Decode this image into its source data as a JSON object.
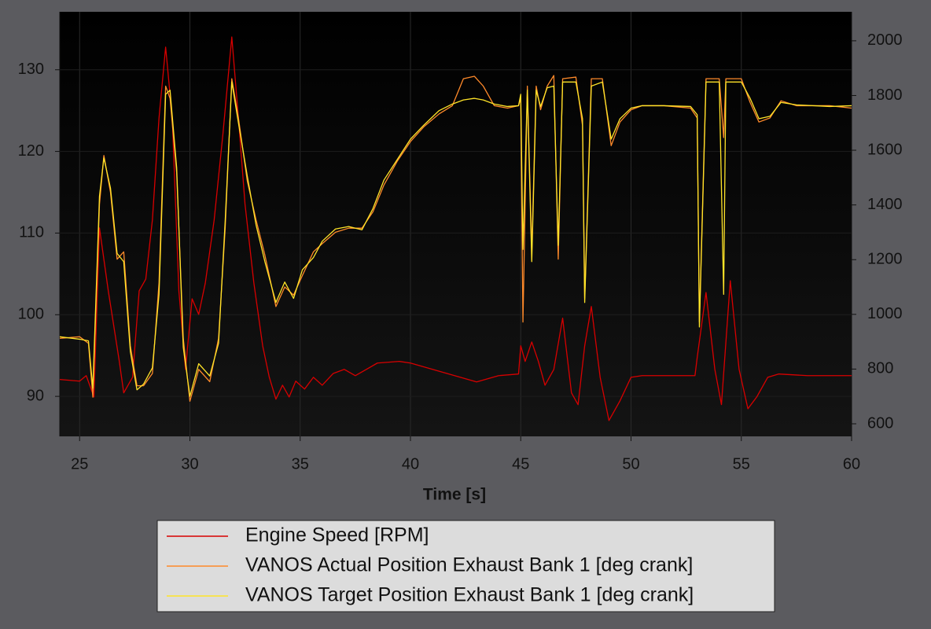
{
  "chart_data": {
    "type": "line",
    "xlabel": "Time [s]",
    "xlim": [
      24.1,
      60
    ],
    "xticks": [
      25,
      30,
      35,
      40,
      45,
      50,
      55,
      60
    ],
    "ylim": [
      85.1,
      137.1
    ],
    "yticks": [
      90,
      100,
      110,
      120,
      130
    ],
    "y2lim": [
      554,
      2106
    ],
    "y2ticks": [
      600,
      800,
      1000,
      1200,
      1400,
      1600,
      1800,
      2000
    ],
    "grid": true,
    "legend": "bottom",
    "series": [
      {
        "name": "Engine Speed [RPM]",
        "color": "#d80000",
        "axis": "y2",
        "x": [
          24.1,
          25.0,
          25.3,
          25.65,
          25.9,
          26.3,
          26.8,
          27.0,
          27.4,
          27.7,
          28.0,
          28.3,
          28.6,
          28.9,
          29.2,
          29.5,
          29.8,
          30.1,
          30.4,
          30.7,
          31.1,
          31.5,
          31.9,
          32.2,
          32.5,
          32.9,
          33.3,
          33.6,
          33.9,
          34.2,
          34.5,
          34.8,
          35.2,
          35.6,
          36.0,
          36.5,
          37.0,
          37.5,
          38.0,
          38.5,
          39.5,
          40.0,
          41.0,
          42.0,
          43.0,
          44.0,
          44.9,
          45.0,
          45.2,
          45.5,
          45.8,
          46.1,
          46.5,
          46.9,
          47.3,
          47.6,
          47.9,
          48.2,
          48.6,
          49.0,
          49.5,
          50.0,
          50.5,
          51.0,
          52.0,
          52.9,
          53.0,
          53.4,
          53.8,
          54.1,
          54.5,
          54.9,
          55.3,
          55.7,
          56.2,
          56.7,
          58.0,
          60.0
        ],
        "values": [
          762,
          756,
          776,
          698,
          1316,
          1086,
          828,
          713,
          770,
          1086,
          1129,
          1345,
          1718,
          1977,
          1718,
          1086,
          799,
          1057,
          1000,
          1115,
          1345,
          1661,
          2014,
          1718,
          1402,
          1115,
          885,
          770,
          690,
          741,
          698,
          756,
          727,
          770,
          741,
          784,
          799,
          776,
          799,
          822,
          828,
          822,
          799,
          776,
          753,
          776,
          782,
          885,
          828,
          899,
          828,
          741,
          799,
          986,
          713,
          670,
          885,
          1029,
          770,
          612,
          684,
          770,
          776,
          776,
          776,
          776,
          842,
          1080,
          799,
          670,
          1123,
          799,
          655,
          698,
          770,
          782,
          776,
          776
        ]
      },
      {
        "name": "VANOS Actual Position Exhaust Bank 1 [deg crank]",
        "color": "#ff8a2a",
        "x": [
          24.1,
          25.0,
          25.4,
          25.6,
          25.9,
          26.1,
          26.4,
          26.7,
          27.0,
          27.3,
          27.6,
          27.9,
          28.3,
          28.6,
          28.9,
          29.1,
          29.4,
          29.7,
          30.0,
          30.4,
          30.9,
          31.3,
          31.6,
          31.9,
          32.2,
          32.6,
          33.0,
          33.4,
          33.9,
          34.3,
          34.7,
          35.1,
          35.6,
          36.0,
          36.6,
          37.2,
          37.8,
          38.3,
          38.8,
          39.4,
          40.0,
          40.6,
          41.3,
          41.9,
          42.4,
          42.9,
          43.3,
          43.8,
          44.4,
          44.9,
          45.0,
          45.1,
          45.3,
          45.5,
          45.7,
          45.9,
          46.2,
          46.5,
          46.7,
          46.9,
          47.5,
          47.8,
          47.9,
          48.2,
          48.7,
          49.1,
          49.5,
          50.0,
          50.5,
          51.5,
          52.7,
          53.0,
          53.1,
          53.4,
          54.0,
          54.2,
          54.3,
          55.0,
          55.4,
          55.8,
          56.3,
          56.8,
          57.5,
          59.0,
          60.0
        ],
        "values": [
          97.1,
          97.3,
          96.5,
          89.9,
          113.5,
          119.5,
          115.0,
          106.8,
          107.7,
          96.2,
          91.3,
          91.3,
          92.8,
          103.9,
          128.0,
          126.5,
          117.4,
          97.1,
          89.4,
          93.3,
          91.8,
          97.1,
          110.6,
          128.9,
          124.1,
          116.4,
          111.6,
          107.3,
          101.0,
          103.4,
          102.4,
          104.8,
          107.7,
          108.7,
          110.1,
          110.6,
          110.6,
          112.6,
          115.9,
          118.8,
          121.2,
          123.0,
          124.6,
          125.6,
          128.9,
          129.2,
          128.0,
          125.6,
          125.3,
          125.6,
          126.5,
          99.1,
          128.0,
          107.7,
          128.0,
          125.1,
          128.0,
          129.3,
          106.8,
          128.9,
          129.1,
          123.2,
          102.0,
          128.9,
          128.9,
          120.7,
          123.6,
          125.1,
          125.6,
          125.6,
          125.3,
          124.1,
          99.1,
          128.9,
          128.9,
          121.7,
          128.9,
          128.9,
          126.0,
          123.6,
          124.1,
          126.2,
          125.6,
          125.6,
          125.3
        ]
      },
      {
        "name": "VANOS Target Position Exhaust Bank 1 [deg crank]",
        "color": "#ffe428",
        "x": [
          24.1,
          25.0,
          25.4,
          25.6,
          25.9,
          26.1,
          26.4,
          26.7,
          27.0,
          27.3,
          27.6,
          27.9,
          28.3,
          28.6,
          28.9,
          29.1,
          29.4,
          29.7,
          30.0,
          30.4,
          30.9,
          31.3,
          31.6,
          31.9,
          32.2,
          32.6,
          33.0,
          33.4,
          33.9,
          34.3,
          34.7,
          35.1,
          35.6,
          36.0,
          36.6,
          37.2,
          37.8,
          38.3,
          38.8,
          39.4,
          40.0,
          40.6,
          41.3,
          41.9,
          42.4,
          42.9,
          43.3,
          43.8,
          44.4,
          44.9,
          45.0,
          45.1,
          45.3,
          45.5,
          45.7,
          45.9,
          46.2,
          46.5,
          46.7,
          46.9,
          47.5,
          47.8,
          47.9,
          48.2,
          48.7,
          49.1,
          49.5,
          50.0,
          50.5,
          51.5,
          52.7,
          53.0,
          53.1,
          53.4,
          54.0,
          54.2,
          54.3,
          55.0,
          55.4,
          55.8,
          56.3,
          56.8,
          57.5,
          59.0,
          60.0
        ],
        "values": [
          97.3,
          97.0,
          96.8,
          91.0,
          114.5,
          119.2,
          115.5,
          107.5,
          106.5,
          95.5,
          90.8,
          91.5,
          93.5,
          102.5,
          127.0,
          127.5,
          118.0,
          96.0,
          90.0,
          94.0,
          92.5,
          96.5,
          111.5,
          128.5,
          123.5,
          117.0,
          111.0,
          106.5,
          101.5,
          104.0,
          102.0,
          105.5,
          107.0,
          109.0,
          110.5,
          110.8,
          110.4,
          113.0,
          116.5,
          119.0,
          121.5,
          123.2,
          125.0,
          125.8,
          126.3,
          126.5,
          126.3,
          125.8,
          125.5,
          125.6,
          127.0,
          108.0,
          127.5,
          106.5,
          127.5,
          125.5,
          127.8,
          128.0,
          108.5,
          128.5,
          128.5,
          124.0,
          101.5,
          128.0,
          128.5,
          121.5,
          124.0,
          125.3,
          125.6,
          125.6,
          125.5,
          124.5,
          98.5,
          128.5,
          128.5,
          102.5,
          128.5,
          128.5,
          126.5,
          124.0,
          124.3,
          126.0,
          125.7,
          125.5,
          125.6
        ]
      }
    ]
  }
}
